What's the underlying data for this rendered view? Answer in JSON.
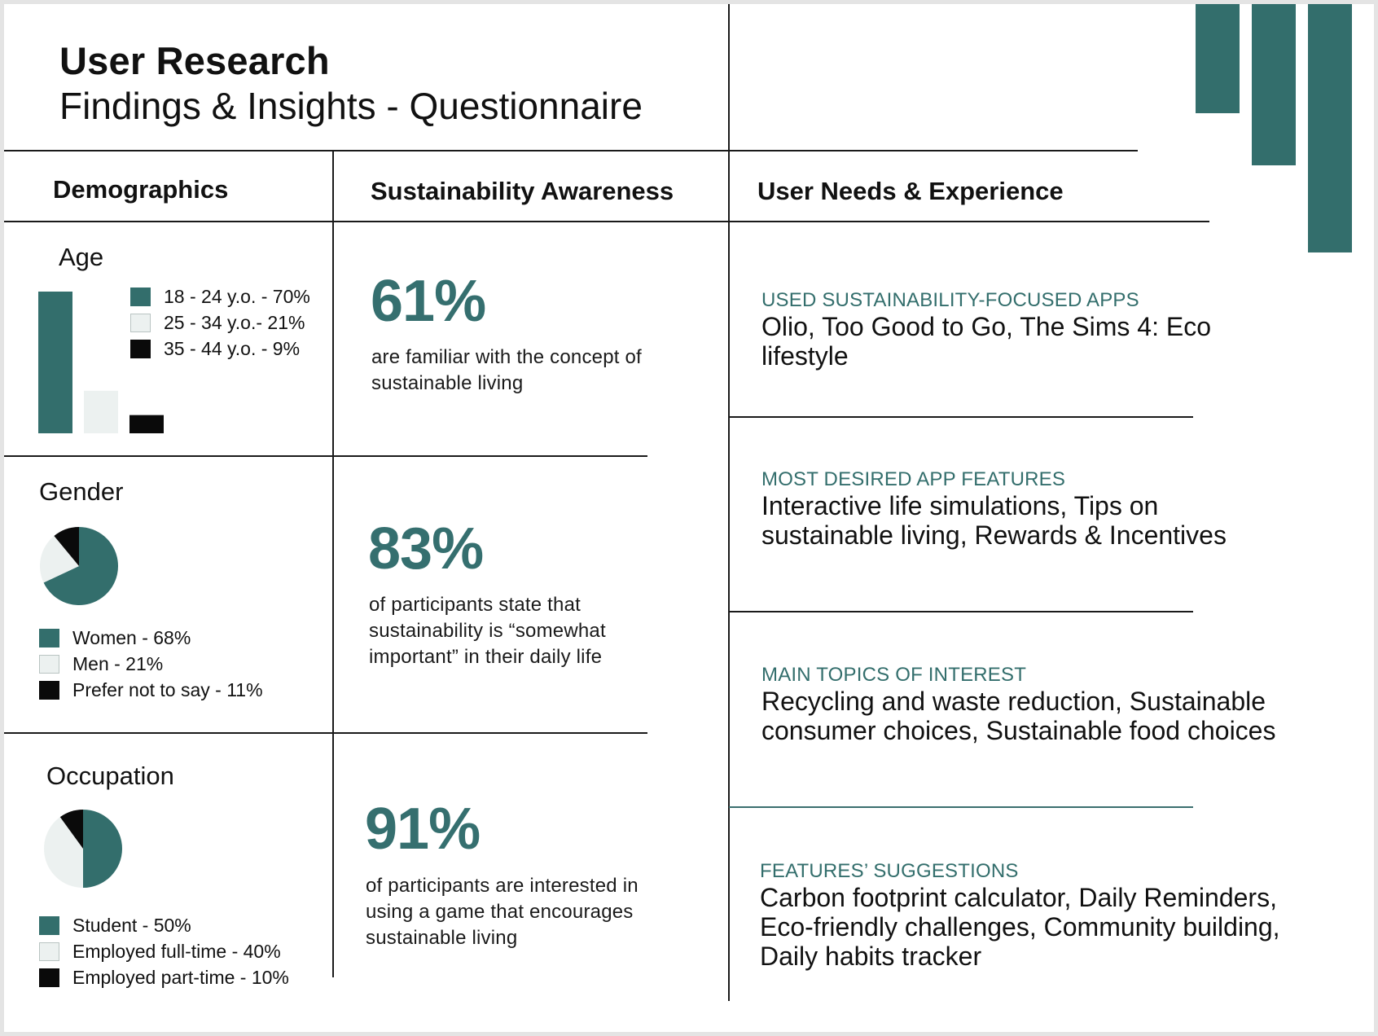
{
  "header": {
    "title": "User Research",
    "subtitle": "Findings & Insights - Questionnaire"
  },
  "columns": {
    "demographics": "Demographics",
    "awareness": "Sustainability Awareness",
    "needs": "User Needs & Experience"
  },
  "colors": {
    "teal": "#336e6c",
    "light": "#ecf1f0",
    "black": "#0a0a0a"
  },
  "chart_data": [
    {
      "type": "bar",
      "title": "Age",
      "categories": [
        "18 - 24 y.o. - 70%",
        "25 - 34 y.o.- 21%",
        "35 - 44 y.o. - 9%"
      ],
      "values": [
        70,
        21,
        9
      ],
      "colors": [
        "#336e6c",
        "#ecf1f0",
        "#0a0a0a"
      ],
      "ylim": [
        0,
        70
      ],
      "grid": false,
      "legend": "top-right"
    },
    {
      "type": "pie",
      "title": "Gender",
      "categories": [
        "Women - 68%",
        "Men - 21%",
        "Prefer not to say - 11%"
      ],
      "values": [
        68,
        21,
        11
      ],
      "colors": [
        "#336e6c",
        "#ecf1f0",
        "#0a0a0a"
      ],
      "legend": "bottom"
    },
    {
      "type": "pie",
      "title": "Occupation",
      "categories": [
        "Student - 50%",
        "Employed full-time - 40%",
        "Employed part-time - 10%"
      ],
      "values": [
        50,
        40,
        10
      ],
      "colors": [
        "#336e6c",
        "#ecf1f0",
        "#0a0a0a"
      ],
      "legend": "bottom"
    }
  ],
  "stats": [
    {
      "value": "61%",
      "description": "are familiar with the concept of sustainable living"
    },
    {
      "value": "83%",
      "description": "of participants state that sustainability is “somewhat important” in their daily life"
    },
    {
      "value": "91%",
      "description": "of participants are interested in using a game that encourages sustainable living"
    }
  ],
  "needs": [
    {
      "label": "USED SUSTAINABILITY-FOCUSED APPS",
      "value": "Olio, Too Good to Go, The Sims 4: Eco lifestyle"
    },
    {
      "label": "MOST DESIRED APP FEATURES",
      "value": "Interactive life simulations, Tips on sustainable living, Rewards & Incentives"
    },
    {
      "label": "MAIN TOPICS OF INTEREST",
      "value": "Recycling and waste reduction, Sustainable consumer choices, Sustainable food choices"
    },
    {
      "label": "FEATURES’ SUGGESTIONS",
      "value": "Carbon footprint calculator, Daily Reminders, Eco-friendly challenges, Community building, Daily habits tracker"
    }
  ]
}
